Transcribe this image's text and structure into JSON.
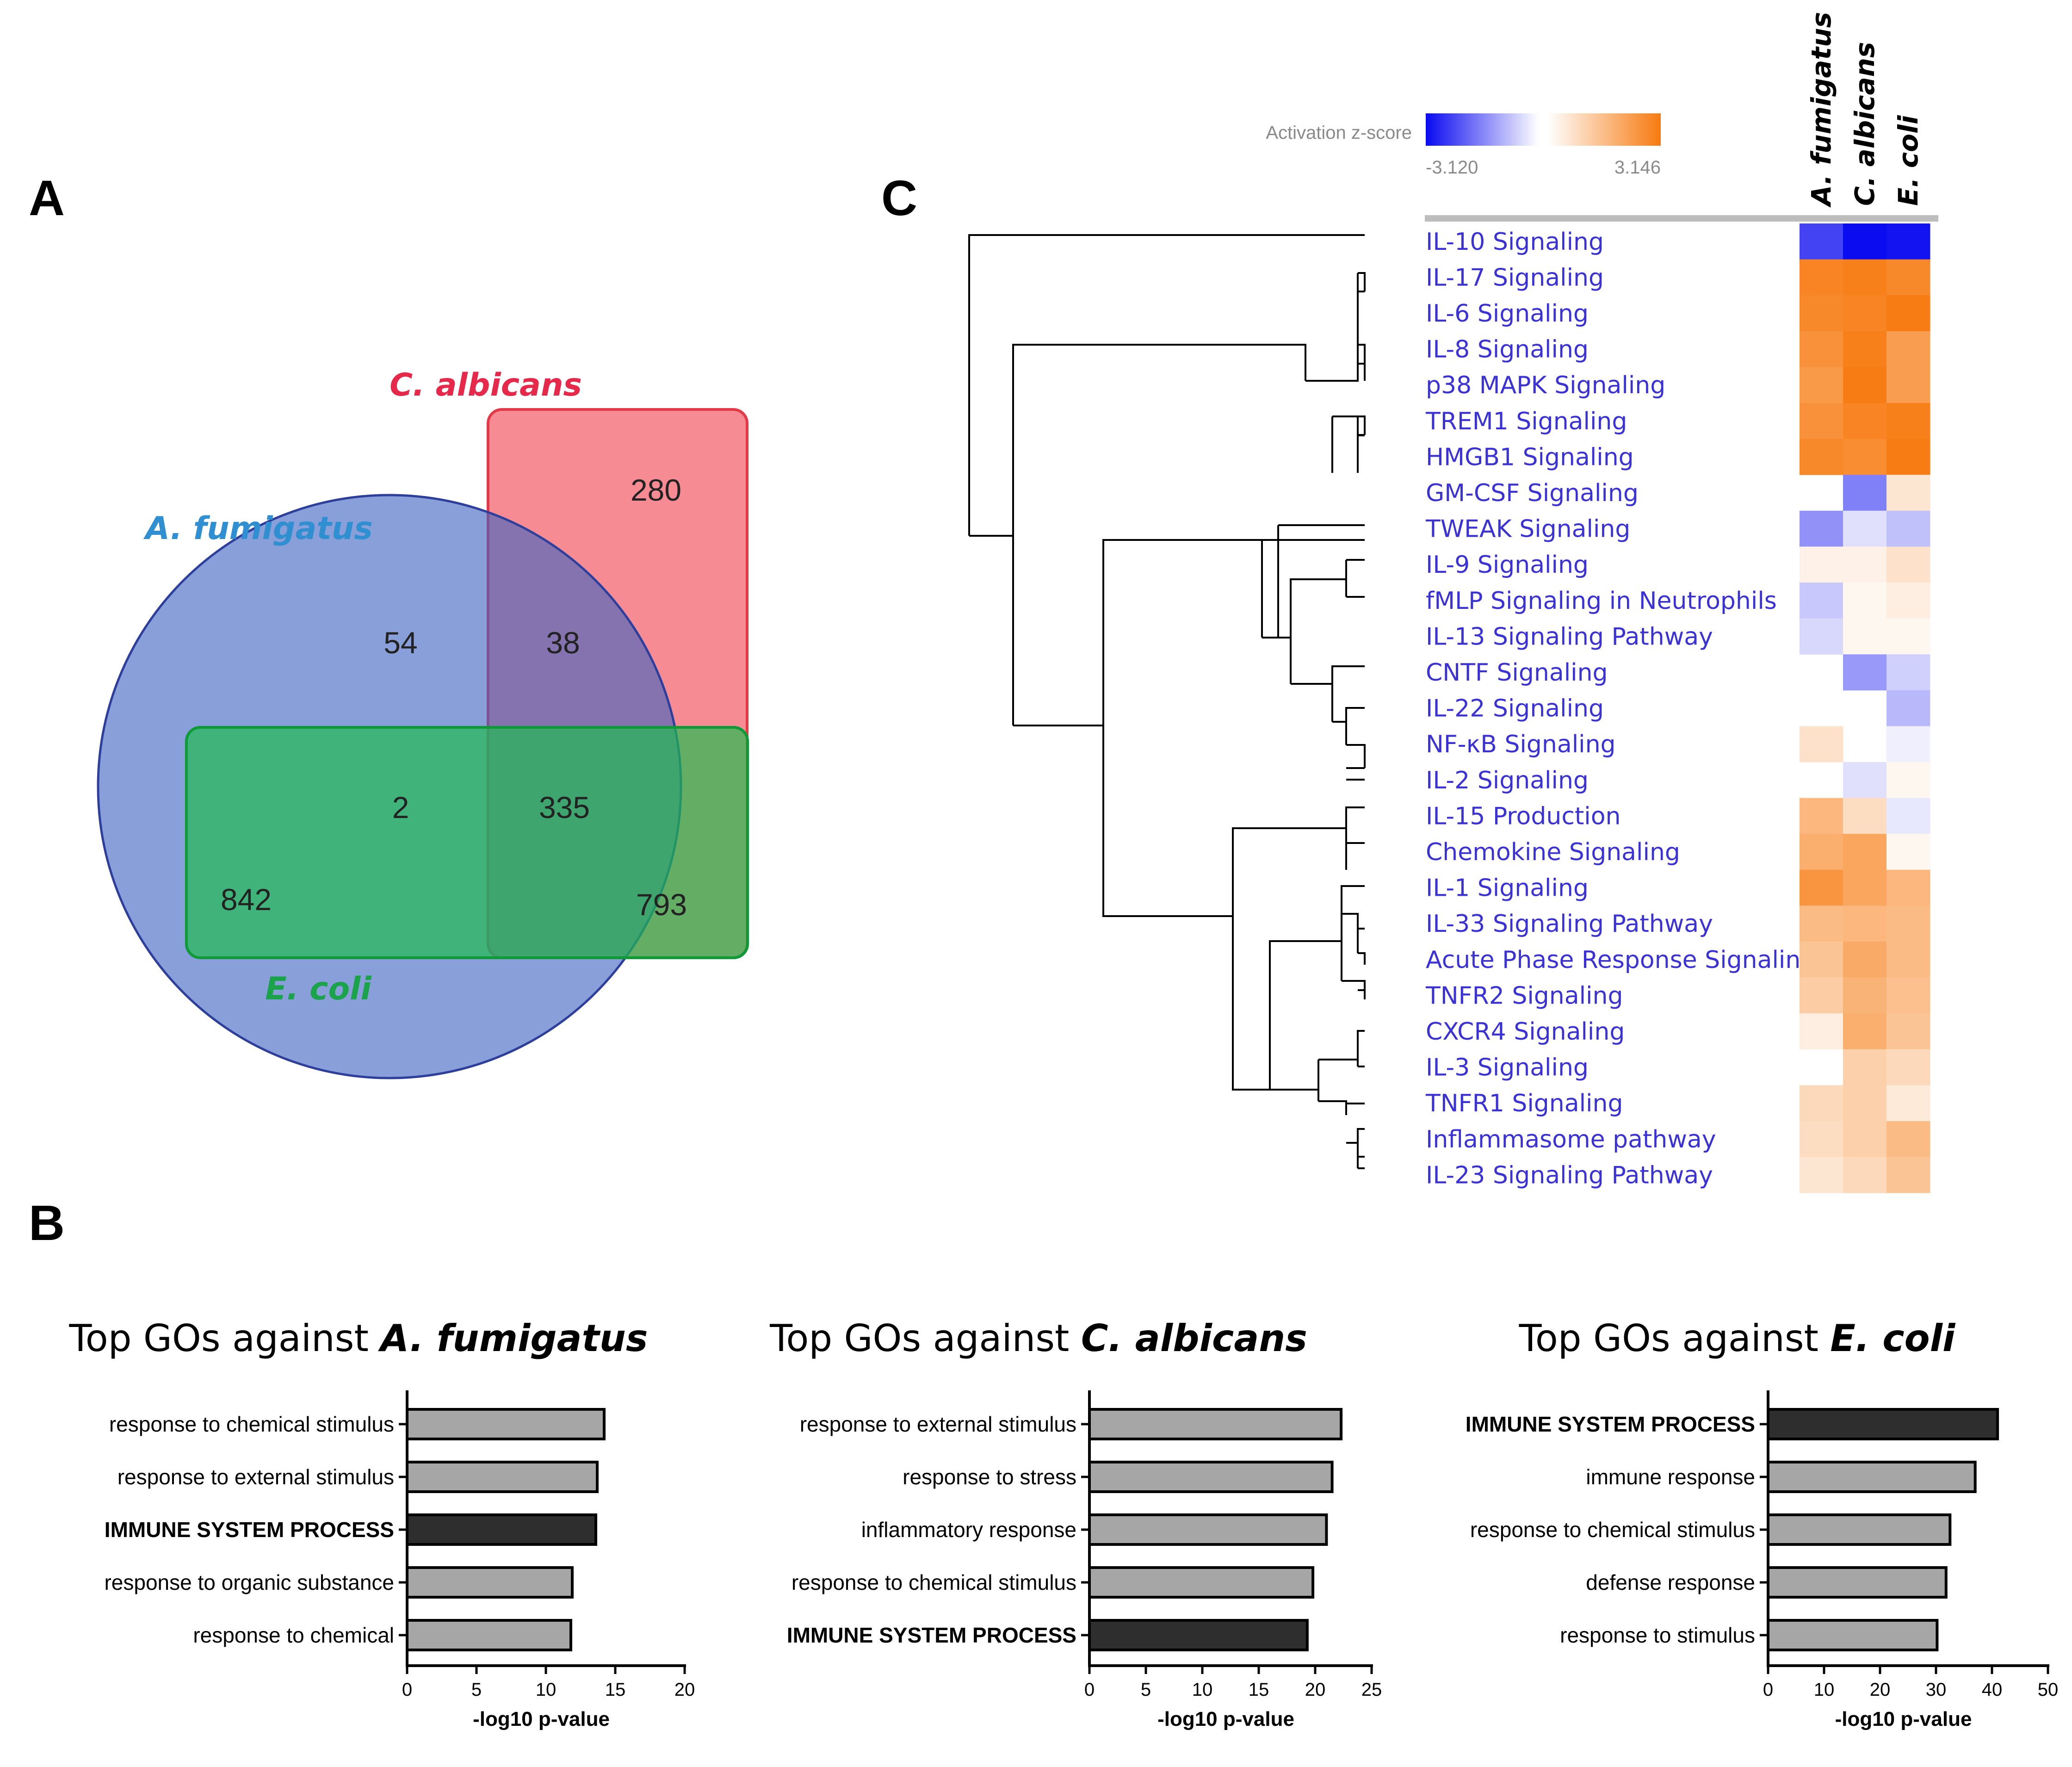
{
  "panels": {
    "a": "A",
    "b": "B",
    "c": "C"
  },
  "venn": {
    "labels": {
      "c_albicans": "C. albicans",
      "a_fumigatus": "A. fumigatus",
      "e_coli": "E. coli"
    },
    "colors": {
      "c_albicans": "#e6294b",
      "a_fumigatus": "#2f8fd0",
      "e_coli": "#1aa34a"
    },
    "counts": {
      "c_albicans_only": "280",
      "a_fumigatus_only": "54",
      "a_fumigatus_c_albicans": "38",
      "a_fumigatus_e_coli": "2",
      "all_three": "335",
      "e_coli_only": "842",
      "c_albicans_e_coli": "793"
    }
  },
  "heatmap": {
    "legend": {
      "title": "Activation z-score",
      "min": "-3.120",
      "max": "3.146",
      "min_value": -3.12,
      "max_value": 3.146,
      "neg_color": "#0a0af0",
      "pos_color": "#f77a10"
    },
    "columns": [
      "A. fumigatus",
      "C. albicans",
      "E. coli"
    ],
    "rows": [
      {
        "label": "IL-10 Signaling",
        "values": [
          -2.4,
          -3.1,
          -3.0
        ]
      },
      {
        "label": "IL-17 Signaling",
        "values": [
          2.9,
          3.0,
          2.8
        ]
      },
      {
        "label": "IL-6 Signaling",
        "values": [
          2.8,
          2.9,
          3.1
        ]
      },
      {
        "label": "IL-8 Signaling",
        "values": [
          2.6,
          3.0,
          2.3
        ]
      },
      {
        "label": "p38 MAPK Signaling",
        "values": [
          2.4,
          3.1,
          2.3
        ]
      },
      {
        "label": "TREM1 Signaling",
        "values": [
          2.6,
          2.9,
          3.0
        ]
      },
      {
        "label": "HMGB1 Signaling",
        "values": [
          2.8,
          2.7,
          3.1
        ]
      },
      {
        "label": "GM-CSF Signaling",
        "values": [
          null,
          -1.6,
          0.6
        ]
      },
      {
        "label": "TWEAK Signaling",
        "values": [
          -1.4,
          -0.4,
          -0.8
        ]
      },
      {
        "label": "IL-9 Signaling",
        "values": [
          0.3,
          0.3,
          0.7
        ]
      },
      {
        "label": "fMLP Signaling in Neutrophils",
        "values": [
          -0.7,
          0.2,
          0.4
        ]
      },
      {
        "label": "IL-13 Signaling Pathway",
        "values": [
          -0.5,
          0.2,
          0.2
        ]
      },
      {
        "label": "CNTF Signaling",
        "values": [
          null,
          -1.3,
          -0.6
        ]
      },
      {
        "label": "IL-22 Signaling",
        "values": [
          null,
          null,
          -0.9
        ]
      },
      {
        "label": "NF-κB Signaling",
        "values": [
          0.7,
          null,
          -0.2
        ]
      },
      {
        "label": "IL-2 Signaling",
        "values": [
          null,
          -0.4,
          0.2
        ]
      },
      {
        "label": "IL-15 Production",
        "values": [
          1.7,
          0.8,
          -0.3
        ]
      },
      {
        "label": "Chemokine Signaling",
        "values": [
          1.9,
          2.1,
          0.2
        ]
      },
      {
        "label": "IL-1 Signaling",
        "values": [
          2.5,
          2.1,
          1.7
        ]
      },
      {
        "label": "IL-33 Signaling Pathway",
        "values": [
          1.6,
          1.7,
          1.6
        ]
      },
      {
        "label": "Acute Phase Response Signaling",
        "values": [
          1.4,
          2.0,
          1.6
        ]
      },
      {
        "label": "TNFR2 Signaling",
        "values": [
          1.2,
          1.8,
          1.5
        ]
      },
      {
        "label": "CXCR4 Signaling",
        "values": [
          0.4,
          1.9,
          1.4
        ]
      },
      {
        "label": "IL-3 Signaling",
        "values": [
          null,
          1.1,
          0.9
        ]
      },
      {
        "label": "TNFR1 Signaling",
        "values": [
          0.9,
          1.1,
          0.5
        ]
      },
      {
        "label": "Inflammasome pathway",
        "values": [
          0.8,
          1.1,
          1.6
        ]
      },
      {
        "label": "IL-23 Signaling Pathway",
        "values": [
          0.6,
          0.9,
          1.4
        ]
      }
    ]
  },
  "chart_data": [
    {
      "type": "bar",
      "orientation": "horizontal",
      "title": "Top GOs against ",
      "title_species": "A. fumigatus",
      "categories": [
        "response to chemical stimulus",
        "response to external stimulus",
        "IMMUNE SYSTEM PROCESS",
        "response to organic substance",
        "response to chemical"
      ],
      "values": [
        14.2,
        13.7,
        13.6,
        11.9,
        11.8
      ],
      "highlight": [
        false,
        false,
        true,
        false,
        false
      ],
      "xlabel": "-log10 p-value",
      "xlim": [
        0,
        20
      ],
      "ticks": [
        "0",
        "5",
        "10",
        "15",
        "20"
      ]
    },
    {
      "type": "bar",
      "orientation": "horizontal",
      "title": "Top GOs against ",
      "title_species": "C. albicans",
      "categories": [
        "response to external stimulus",
        "response to stress",
        "inflammatory response",
        "response to chemical stimulus",
        "IMMUNE SYSTEM PROCESS"
      ],
      "values": [
        22.3,
        21.5,
        21.0,
        19.8,
        19.3
      ],
      "highlight": [
        false,
        false,
        false,
        false,
        true
      ],
      "xlabel": "-log10 p-value",
      "xlim": [
        0,
        25
      ],
      "ticks": [
        "0",
        "5",
        "10",
        "15",
        "20",
        "25"
      ]
    },
    {
      "type": "bar",
      "orientation": "horizontal",
      "title": "Top GOs against ",
      "title_species": "E. coli",
      "categories": [
        "IMMUNE SYSTEM PROCESS",
        "immune response",
        "response to chemical stimulus",
        "defense response",
        "response to stimulus"
      ],
      "values": [
        41,
        37,
        32.5,
        31.8,
        30.2
      ],
      "highlight": [
        true,
        false,
        false,
        false,
        false
      ],
      "xlabel": "-log10 p-value",
      "xlim": [
        0,
        50
      ],
      "ticks": [
        "0",
        "10",
        "20",
        "30",
        "40",
        "50"
      ]
    }
  ]
}
